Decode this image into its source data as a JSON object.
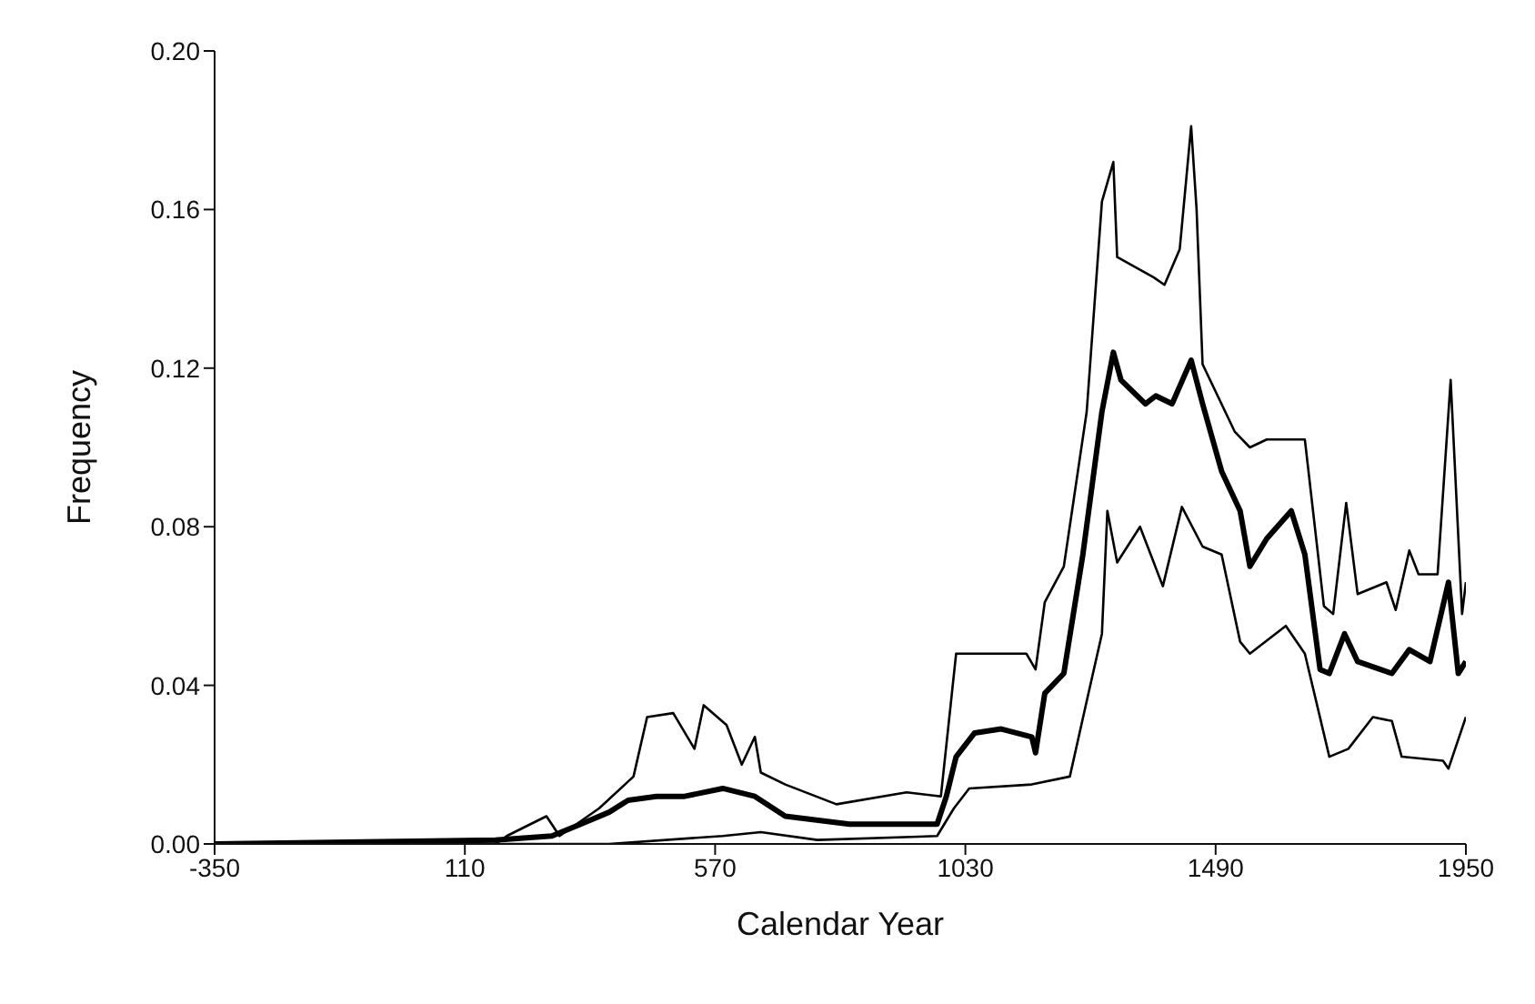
{
  "chart_data": {
    "type": "line",
    "xlabel": "Calendar Year",
    "ylabel": "Frequency",
    "xlim": [
      -350,
      1950
    ],
    "xticks": [
      -350,
      110,
      570,
      1030,
      1490,
      1950
    ],
    "ylim": [
      0,
      0.2
    ],
    "yticks": [
      {
        "value": 0,
        "label": "0.00"
      },
      {
        "value": 0.04,
        "label": "0.04"
      },
      {
        "value": 0.08,
        "label": "0.08"
      },
      {
        "value": 0.12,
        "label": "0.12"
      },
      {
        "value": 0.16,
        "label": "0.16"
      },
      {
        "value": 0.2,
        "label": "0.20"
      }
    ],
    "grid": false,
    "legend": false,
    "marker": "none",
    "line_style": "solid",
    "series": [
      {
        "color": "#000000",
        "x": [
          -350,
          166,
          270,
          323,
          375,
          410,
          462,
          514,
          584,
          643,
          699,
          817,
          978,
          995,
          1013,
          1047,
          1096,
          1152,
          1159,
          1176,
          1211,
          1246,
          1281,
          1302,
          1316,
          1361,
          1380,
          1410,
          1445,
          1466,
          1501,
          1535,
          1553,
          1584,
          1629,
          1654,
          1682,
          1699,
          1727,
          1751,
          1793,
          1814,
          1846,
          1884,
          1918,
          1936,
          1950
        ],
        "values": [
          0,
          0.001,
          0.002,
          0.005,
          0.008,
          0.011,
          0.012,
          0.012,
          0.014,
          0.012,
          0.007,
          0.005,
          0.005,
          0.012,
          0.022,
          0.028,
          0.029,
          0.027,
          0.023,
          0.038,
          0.043,
          0.073,
          0.109,
          0.124,
          0.117,
          0.111,
          0.113,
          0.111,
          0.122,
          0.111,
          0.094,
          0.084,
          0.07,
          0.077,
          0.084,
          0.073,
          0.044,
          0.043,
          0.053,
          0.046,
          0.044,
          0.043,
          0.049,
          0.046,
          0.066,
          0.043,
          0.046
        ]
      },
      {
        "color": "#000000",
        "x": [
          -350,
          166,
          187,
          260,
          284,
          357,
          420,
          445,
          493,
          532,
          549,
          591,
          619,
          643,
          654,
          699,
          793,
          922,
          985,
          1013,
          1037,
          1142,
          1159,
          1176,
          1211,
          1253,
          1281,
          1302,
          1309,
          1375,
          1396,
          1424,
          1445,
          1455,
          1466,
          1525,
          1553,
          1584,
          1654,
          1689,
          1706,
          1730,
          1751,
          1804,
          1821,
          1846,
          1863,
          1898,
          1922,
          1943,
          1950
        ],
        "values": [
          0,
          0,
          0.002,
          0.007,
          0.002,
          0.009,
          0.017,
          0.032,
          0.033,
          0.024,
          0.035,
          0.03,
          0.02,
          0.027,
          0.018,
          0.015,
          0.01,
          0.013,
          0.012,
          0.048,
          0.048,
          0.048,
          0.044,
          0.061,
          0.07,
          0.109,
          0.162,
          0.172,
          0.148,
          0.143,
          0.141,
          0.15,
          0.181,
          0.16,
          0.121,
          0.104,
          0.1,
          0.102,
          0.102,
          0.06,
          0.058,
          0.086,
          0.063,
          0.066,
          0.059,
          0.074,
          0.068,
          0.068,
          0.117,
          0.058,
          0.066
        ]
      },
      {
        "color": "#000000",
        "x": [
          -350,
          375,
          584,
          654,
          758,
          978,
          1009,
          1037,
          1152,
          1222,
          1253,
          1281,
          1291,
          1309,
          1351,
          1393,
          1428,
          1466,
          1501,
          1535,
          1553,
          1619,
          1654,
          1699,
          1734,
          1779,
          1814,
          1832,
          1908,
          1918,
          1950
        ],
        "values": [
          0,
          0,
          0.002,
          0.003,
          0.001,
          0.002,
          0.009,
          0.014,
          0.015,
          0.017,
          0.036,
          0.053,
          0.084,
          0.071,
          0.08,
          0.065,
          0.085,
          0.075,
          0.073,
          0.051,
          0.048,
          0.055,
          0.048,
          0.022,
          0.024,
          0.032,
          0.031,
          0.022,
          0.021,
          0.019,
          0.032
        ]
      }
    ]
  }
}
